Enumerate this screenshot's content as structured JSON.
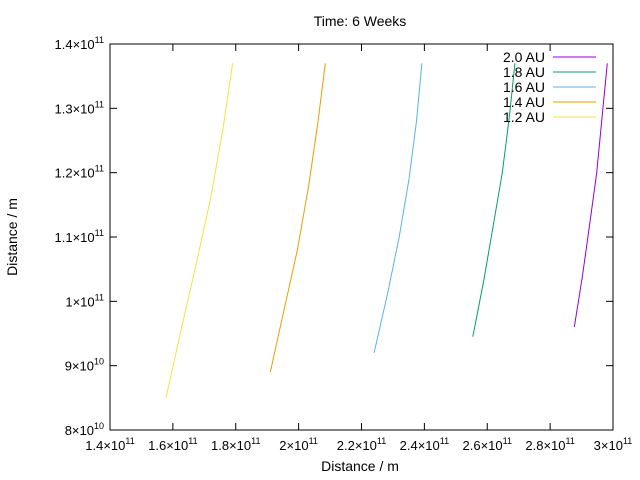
{
  "chart_data": {
    "type": "line",
    "title": "Time: 6 Weeks",
    "xlabel": "Distance / m",
    "ylabel": "Distance / m",
    "xlim": [
      140000000000.0,
      300000000000.0
    ],
    "ylim": [
      80000000000.0,
      140000000000.0
    ],
    "grid": false,
    "legend_position": "top-right",
    "x_ticks": [
      {
        "value": 140000000000.0,
        "mantissa": "1.4",
        "exp": "11"
      },
      {
        "value": 160000000000.0,
        "mantissa": "1.6",
        "exp": "11"
      },
      {
        "value": 180000000000.0,
        "mantissa": "1.8",
        "exp": "11"
      },
      {
        "value": 200000000000.0,
        "mantissa": "2",
        "exp": "11"
      },
      {
        "value": 220000000000.0,
        "mantissa": "2.2",
        "exp": "11"
      },
      {
        "value": 240000000000.0,
        "mantissa": "2.4",
        "exp": "11"
      },
      {
        "value": 260000000000.0,
        "mantissa": "2.6",
        "exp": "11"
      },
      {
        "value": 280000000000.0,
        "mantissa": "2.8",
        "exp": "11"
      },
      {
        "value": 300000000000.0,
        "mantissa": "3",
        "exp": "11"
      }
    ],
    "y_ticks": [
      {
        "value": 80000000000.0,
        "mantissa": "8",
        "exp": "10"
      },
      {
        "value": 90000000000.0,
        "mantissa": "9",
        "exp": "10"
      },
      {
        "value": 100000000000.0,
        "mantissa": "1",
        "exp": "11"
      },
      {
        "value": 110000000000.0,
        "mantissa": "1.1",
        "exp": "11"
      },
      {
        "value": 120000000000.0,
        "mantissa": "1.2",
        "exp": "11"
      },
      {
        "value": 130000000000.0,
        "mantissa": "1.3",
        "exp": "11"
      },
      {
        "value": 140000000000.0,
        "mantissa": "1.4",
        "exp": "11"
      }
    ],
    "series": [
      {
        "name": "2.0 AU",
        "color": "#9400d3",
        "x": [
          287700000000.0,
          290300000000.0,
          292600000000.0,
          294800000000.0,
          296600000000.0,
          298200000000.0
        ],
        "y": [
          96000000000.0,
          104000000000.0,
          112000000000.0,
          120000000000.0,
          129000000000.0,
          137000000000.0
        ]
      },
      {
        "name": "1.8 AU",
        "color": "#009e73",
        "x": [
          255400000000.0,
          258800000000.0,
          262000000000.0,
          264800000000.0,
          267100000000.0,
          268800000000.0
        ],
        "y": [
          94500000000.0,
          103000000000.0,
          112000000000.0,
          120000000000.0,
          129000000000.0,
          137000000000.0
        ]
      },
      {
        "name": "1.6 AU",
        "color": "#56b4e9",
        "x": [
          224000000000.0,
          228200000000.0,
          232000000000.0,
          235100000000.0,
          237500000000.0,
          239200000000.0
        ],
        "y": [
          92000000000.0,
          101000000000.0,
          110000000000.0,
          119000000000.0,
          128000000000.0,
          137000000000.0
        ]
      },
      {
        "name": "1.4 AU",
        "color": "#e69f00",
        "x": [
          191000000000.0,
          195500000000.0,
          199600000000.0,
          203200000000.0,
          206200000000.0,
          208500000000.0
        ],
        "y": [
          89000000000.0,
          99000000000.0,
          108000000000.0,
          118000000000.0,
          128000000000.0,
          137000000000.0
        ]
      },
      {
        "name": "1.2 AU",
        "color": "#f0e442",
        "x": [
          157800000000.0,
          162800000000.0,
          167500000000.0,
          172000000000.0,
          176000000000.0,
          179000000000.0
        ],
        "y": [
          85000000000.0,
          96000000000.0,
          106000000000.0,
          116000000000.0,
          127000000000.0,
          137000000000.0
        ]
      }
    ]
  }
}
